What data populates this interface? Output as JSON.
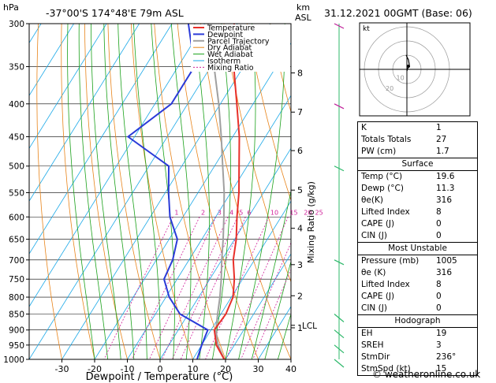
{
  "header": {
    "hpa_label": "hPa",
    "location": "-37°00'S  174°48'E  79m  ASL",
    "km_label": "km",
    "asl_label": "ASL",
    "datetime": "31.12.2021  00GMT  (Base: 06)"
  },
  "chart_data": {
    "type": "skew-t log-p",
    "xlabel": "Dewpoint / Temperature (°C)",
    "ylabel": "hPa",
    "mixing_ratio_axis_label": "Mixing Ratio (g/kg)",
    "x_ticks": [
      -30,
      -20,
      -10,
      0,
      10,
      20,
      30,
      40
    ],
    "xlim": [
      -40,
      40
    ],
    "pressure_levels": [
      300,
      350,
      400,
      450,
      500,
      550,
      600,
      650,
      700,
      750,
      800,
      850,
      900,
      950,
      1000
    ],
    "km_ticks": [
      {
        "km": "8",
        "p": 358
      },
      {
        "km": "7",
        "p": 412
      },
      {
        "km": "6",
        "p": 473
      },
      {
        "km": "5",
        "p": 545
      },
      {
        "km": "4",
        "p": 625
      },
      {
        "km": "3",
        "p": 712
      },
      {
        "km": "2",
        "p": 796
      },
      {
        "km": "1",
        "p": 893
      }
    ],
    "lcl_label": "LCL",
    "lcl_p": 885,
    "mixing_ratio_labels": [
      "1",
      "2",
      "3",
      "4",
      "5",
      "6",
      "10",
      "15",
      "20",
      "25"
    ],
    "mixing_ratio_values": [
      1,
      2,
      3,
      4,
      5,
      6,
      10,
      15,
      20,
      25
    ],
    "legend": [
      "Temperature",
      "Dewpoint",
      "Parcel Trajectory",
      "Dry Adiabat",
      "Wet Adiabat",
      "Isotherm",
      "Mixing Ratio"
    ],
    "colors": {
      "temperature": "#e8302a",
      "dewpoint": "#2a3ad8",
      "parcel": "#a0a0a0",
      "dry_adiabat": "#e8841a",
      "wet_adiabat": "#1aa11a",
      "isotherm": "#1aa8e8",
      "mixing_ratio": "#d0209a",
      "wind": "#2db86a",
      "wind_top": "#c0209a"
    },
    "temperature": [
      {
        "p": 1000,
        "t": 19.6
      },
      {
        "p": 950,
        "t": 14.5
      },
      {
        "p": 900,
        "t": 11.0
      },
      {
        "p": 850,
        "t": 11.5
      },
      {
        "p": 800,
        "t": 10.5
      },
      {
        "p": 750,
        "t": 7.5
      },
      {
        "p": 700,
        "t": 3.5
      },
      {
        "p": 650,
        "t": 0.5
      },
      {
        "p": 600,
        "t": -3.5
      },
      {
        "p": 550,
        "t": -7.5
      },
      {
        "p": 500,
        "t": -12.5
      },
      {
        "p": 450,
        "t": -18.0
      },
      {
        "p": 400,
        "t": -25.0
      },
      {
        "p": 350,
        "t": -33.0
      },
      {
        "p": 300,
        "t": -41.0
      }
    ],
    "dewpoint": [
      {
        "p": 1000,
        "t": 11.3
      },
      {
        "p": 950,
        "t": 10.0
      },
      {
        "p": 900,
        "t": 9.0
      },
      {
        "p": 850,
        "t": -2.5
      },
      {
        "p": 800,
        "t": -9.0
      },
      {
        "p": 750,
        "t": -14.0
      },
      {
        "p": 700,
        "t": -15.0
      },
      {
        "p": 650,
        "t": -17.5
      },
      {
        "p": 600,
        "t": -24.0
      },
      {
        "p": 550,
        "t": -29.0
      },
      {
        "p": 500,
        "t": -34.0
      },
      {
        "p": 450,
        "t": -52.0
      },
      {
        "p": 400,
        "t": -45.0
      },
      {
        "p": 350,
        "t": -45.0
      },
      {
        "p": 300,
        "t": -55.0
      }
    ],
    "parcel": [
      {
        "p": 1000,
        "t": 19.6
      },
      {
        "p": 950,
        "t": 15.0
      },
      {
        "p": 900,
        "t": 11.5
      },
      {
        "p": 850,
        "t": 9.0
      },
      {
        "p": 800,
        "t": 6.5
      },
      {
        "p": 750,
        "t": 3.5
      },
      {
        "p": 700,
        "t": 0.0
      },
      {
        "p": 650,
        "t": -3.5
      },
      {
        "p": 600,
        "t": -7.5
      },
      {
        "p": 550,
        "t": -12.0
      },
      {
        "p": 500,
        "t": -17.5
      },
      {
        "p": 450,
        "t": -23.5
      },
      {
        "p": 400,
        "t": -30.5
      },
      {
        "p": 350,
        "t": -39.0
      },
      {
        "p": 300,
        "t": -49.0
      }
    ],
    "wind_barb_levels": [
      300,
      400,
      500,
      700,
      850,
      900,
      950,
      1000
    ],
    "hodograph_label": "kt",
    "hodograph_ring_labels": [
      "10",
      "20"
    ]
  },
  "indices": {
    "basic": [
      {
        "label": "K",
        "value": "1"
      },
      {
        "label": "Totals Totals",
        "value": "27"
      },
      {
        "label": "PW (cm)",
        "value": "1.7"
      }
    ],
    "surface_title": "Surface",
    "surface": [
      {
        "label": "Temp (°C)",
        "value": "19.6"
      },
      {
        "label": "Dewp (°C)",
        "value": "11.3"
      },
      {
        "label": "θe(K)",
        "value": "316"
      },
      {
        "label": "Lifted Index",
        "value": "8"
      },
      {
        "label": "CAPE (J)",
        "value": "0"
      },
      {
        "label": "CIN (J)",
        "value": "0"
      }
    ],
    "unstable_title": "Most Unstable",
    "unstable": [
      {
        "label": "Pressure (mb)",
        "value": "1005"
      },
      {
        "label": "θe (K)",
        "value": "316"
      },
      {
        "label": "Lifted Index",
        "value": "8"
      },
      {
        "label": "CAPE (J)",
        "value": "0"
      },
      {
        "label": "CIN (J)",
        "value": "0"
      }
    ],
    "hodograph_title": "Hodograph",
    "hodograph": [
      {
        "label": "EH",
        "value": "19"
      },
      {
        "label": "SREH",
        "value": "3"
      },
      {
        "label": "StmDir",
        "value": "236°"
      },
      {
        "label": "StmSpd (kt)",
        "value": "15"
      }
    ]
  },
  "copyright": "© weatheronline.co.uk"
}
